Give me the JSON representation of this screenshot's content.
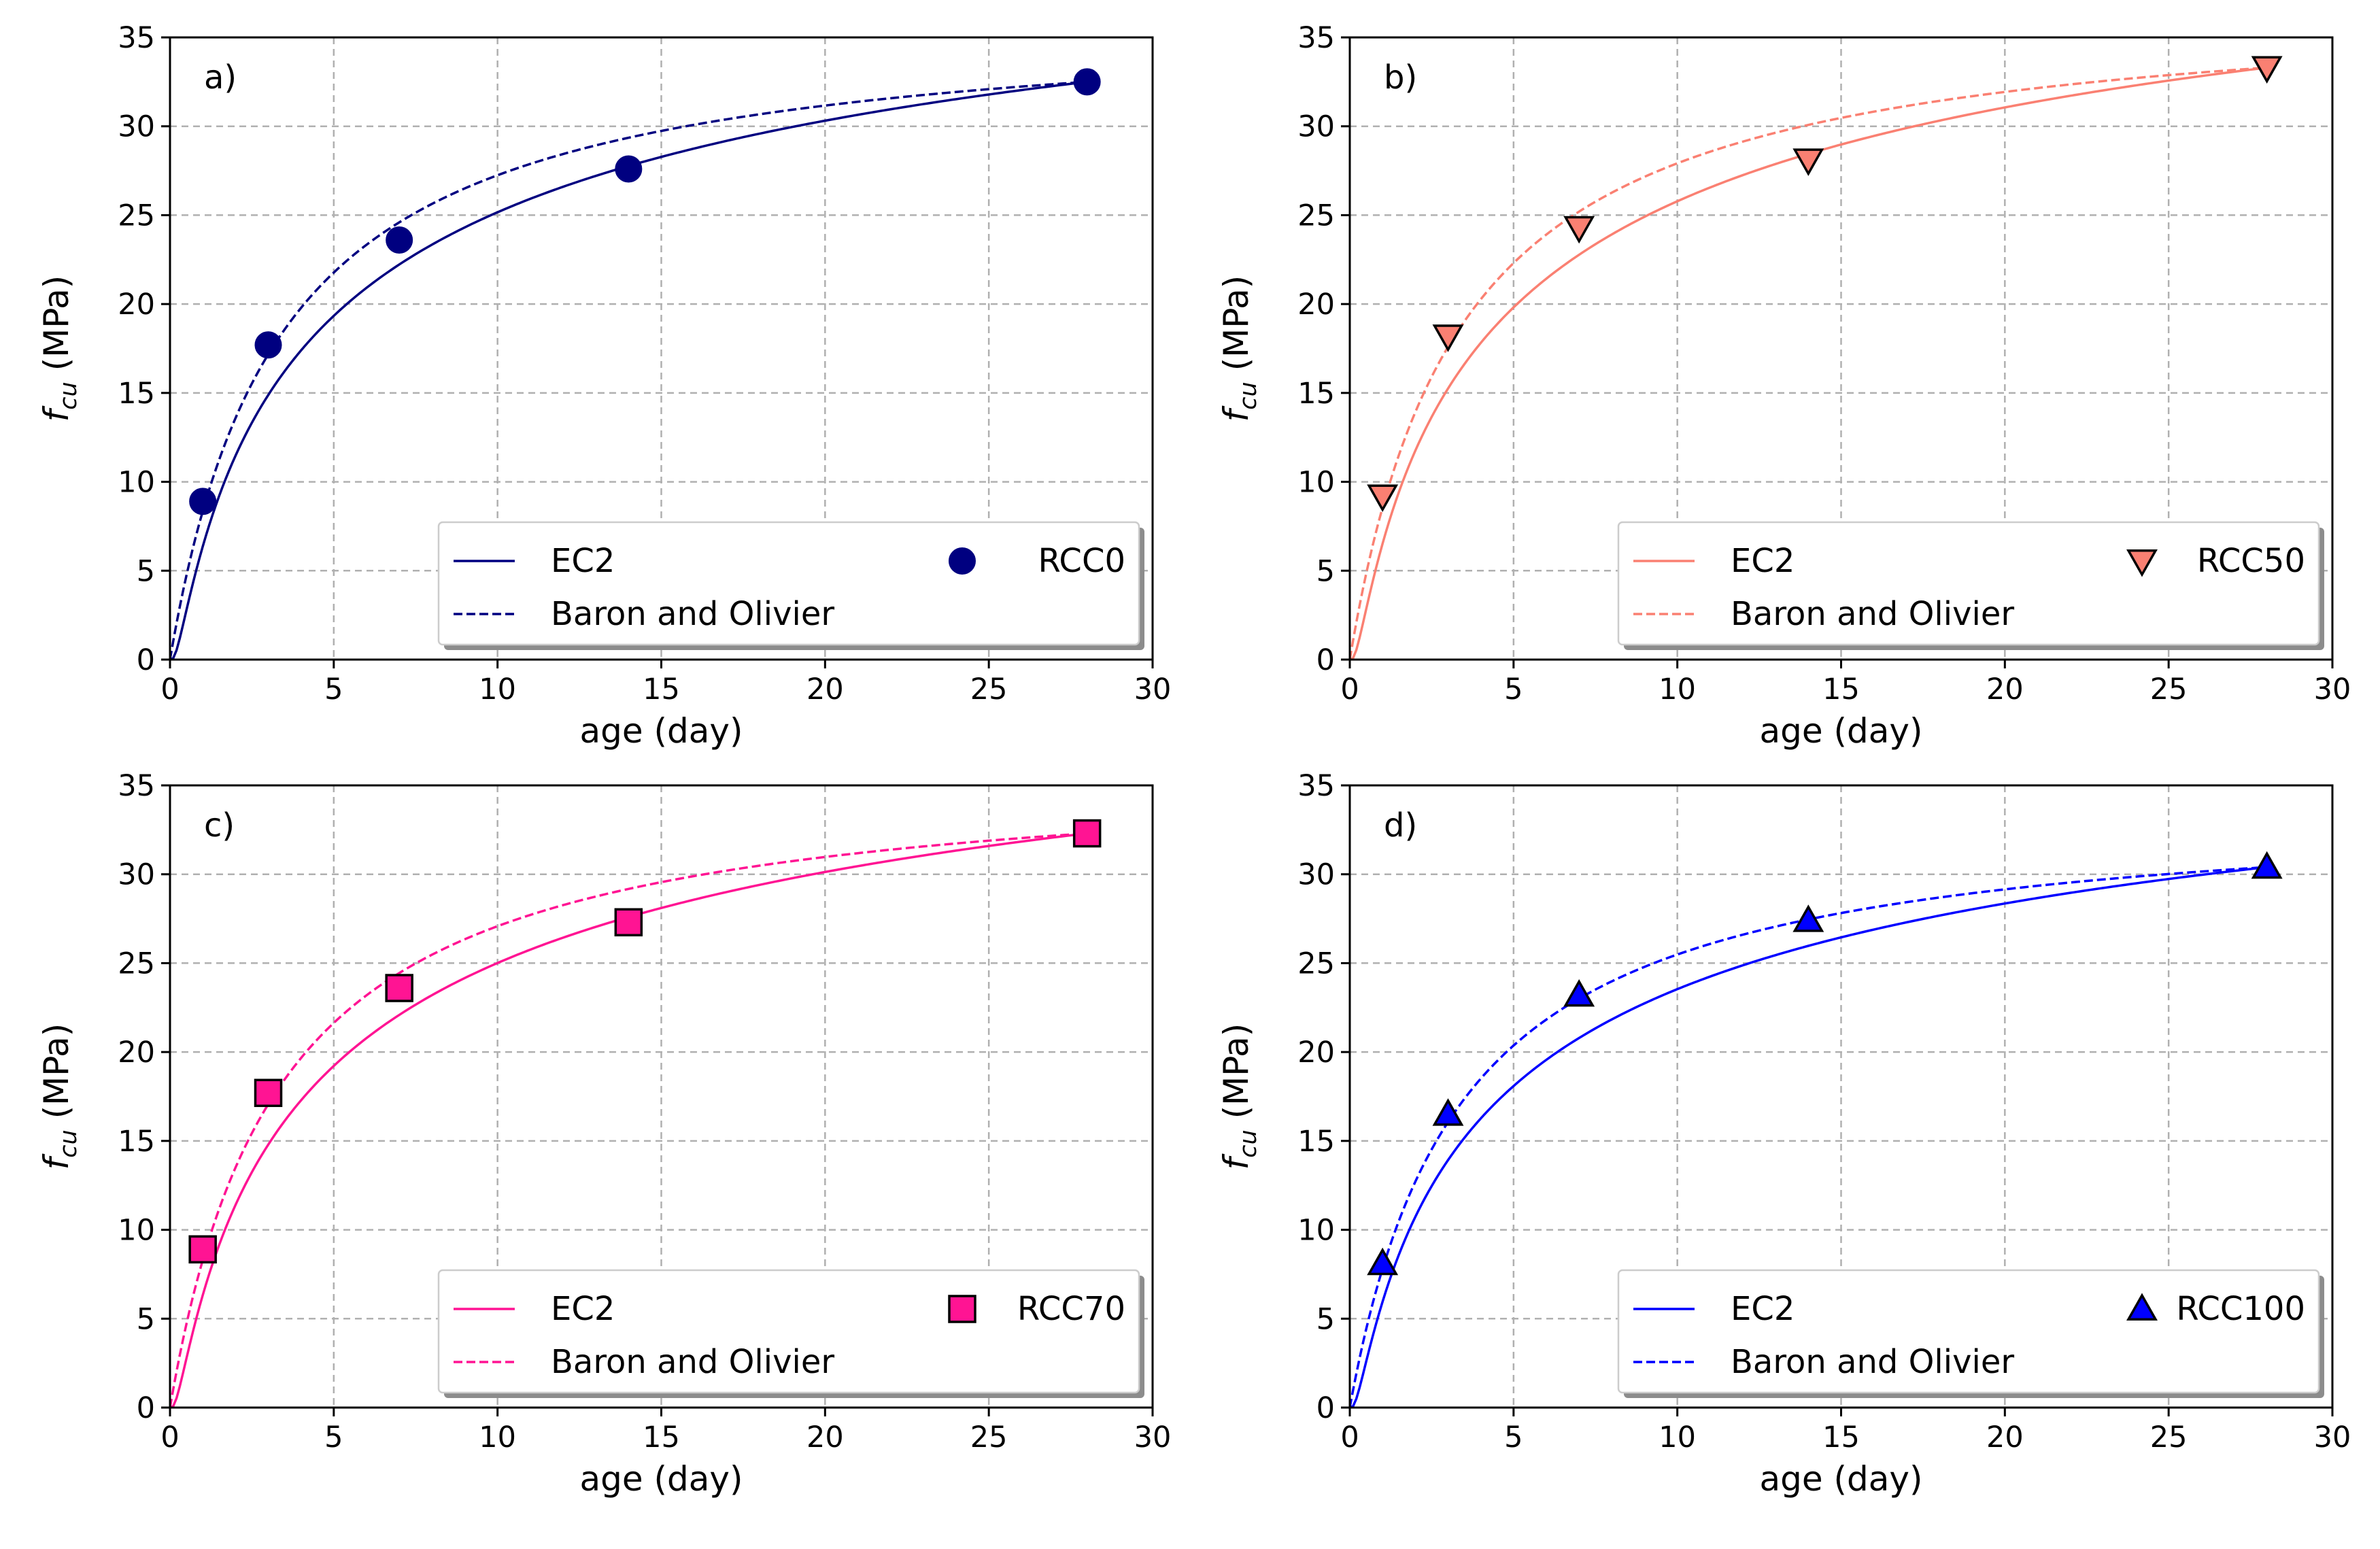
{
  "figure": {
    "ylabel_symbol": "f",
    "ylabel_subscript": "cu",
    "ylabel_unit": " (MPa)"
  },
  "colors": {
    "grid": "#b0b0b0",
    "axes": "#000000",
    "legend_frame": "#cccccc",
    "legend_shadow": "#8c8c8c"
  },
  "chart_data": [
    {
      "type": "line",
      "panel_label": "a)",
      "xlabel": "age (day)",
      "ylabel": "f_cu (MPa)",
      "xlim": [
        0,
        30
      ],
      "ylim": [
        0,
        35
      ],
      "xticks": [
        0,
        5,
        10,
        15,
        20,
        25,
        30
      ],
      "yticks": [
        0,
        5,
        10,
        15,
        20,
        25,
        30,
        35
      ],
      "grid": true,
      "legend_position": "lower right",
      "color": "#000080",
      "marker": "circle",
      "series": [
        {
          "name": "EC2",
          "style": "solid",
          "model": "ec2",
          "f28": 32.5,
          "s": 0.38
        },
        {
          "name": "Baron and Olivier",
          "style": "dashed",
          "model": "baron",
          "f28": 32.5,
          "a": 3.0
        },
        {
          "name": "RCC0",
          "style": "marker",
          "x": [
            1,
            3,
            7,
            14,
            28
          ],
          "y": [
            8.9,
            17.7,
            23.6,
            27.6,
            32.5
          ]
        }
      ]
    },
    {
      "type": "line",
      "panel_label": "b)",
      "xlabel": "age (day)",
      "ylabel": "f_cu (MPa)",
      "xlim": [
        0,
        30
      ],
      "ylim": [
        0,
        35
      ],
      "xticks": [
        0,
        5,
        10,
        15,
        20,
        25,
        30
      ],
      "yticks": [
        0,
        5,
        10,
        15,
        20,
        25,
        30,
        35
      ],
      "grid": true,
      "legend_position": "lower right",
      "color": "#fa8072",
      "marker": "triangle-down",
      "series": [
        {
          "name": "EC2",
          "style": "solid",
          "model": "ec2",
          "f28": 33.3,
          "s": 0.38
        },
        {
          "name": "Baron and Olivier",
          "style": "dashed",
          "model": "baron",
          "f28": 33.3,
          "a": 3.0
        },
        {
          "name": "RCC50",
          "style": "marker",
          "x": [
            1,
            3,
            7,
            14,
            28
          ],
          "y": [
            9.2,
            18.2,
            24.3,
            28.1,
            33.3
          ]
        }
      ]
    },
    {
      "type": "line",
      "panel_label": "c)",
      "xlabel": "age (day)",
      "ylabel": "f_cu (MPa)",
      "xlim": [
        0,
        30
      ],
      "ylim": [
        0,
        35
      ],
      "xticks": [
        0,
        5,
        10,
        15,
        20,
        25,
        30
      ],
      "yticks": [
        0,
        5,
        10,
        15,
        20,
        25,
        30,
        35
      ],
      "grid": true,
      "legend_position": "lower right",
      "color": "#ff1493",
      "marker": "square",
      "series": [
        {
          "name": "EC2",
          "style": "solid",
          "model": "ec2",
          "f28": 32.3,
          "s": 0.38
        },
        {
          "name": "Baron and Olivier",
          "style": "dashed",
          "model": "baron",
          "f28": 32.3,
          "a": 3.0
        },
        {
          "name": "RCC70",
          "style": "marker",
          "x": [
            1,
            3,
            7,
            14,
            28
          ],
          "y": [
            8.9,
            17.7,
            23.6,
            27.3,
            32.3
          ]
        }
      ]
    },
    {
      "type": "line",
      "panel_label": "d)",
      "xlabel": "age (day)",
      "ylabel": "f_cu (MPa)",
      "xlim": [
        0,
        30
      ],
      "ylim": [
        0,
        35
      ],
      "xticks": [
        0,
        5,
        10,
        15,
        20,
        25,
        30
      ],
      "yticks": [
        0,
        5,
        10,
        15,
        20,
        25,
        30,
        35
      ],
      "grid": true,
      "legend_position": "lower right",
      "color": "#0000ff",
      "marker": "triangle-up",
      "series": [
        {
          "name": "EC2",
          "style": "solid",
          "model": "ec2",
          "f28": 30.4,
          "s": 0.38
        },
        {
          "name": "Baron and Olivier",
          "style": "dashed",
          "model": "baron",
          "f28": 30.4,
          "a": 3.0
        },
        {
          "name": "RCC100",
          "style": "marker",
          "x": [
            1,
            3,
            7,
            14,
            28
          ],
          "y": [
            8.1,
            16.5,
            23.2,
            27.4,
            30.4
          ]
        }
      ]
    }
  ]
}
